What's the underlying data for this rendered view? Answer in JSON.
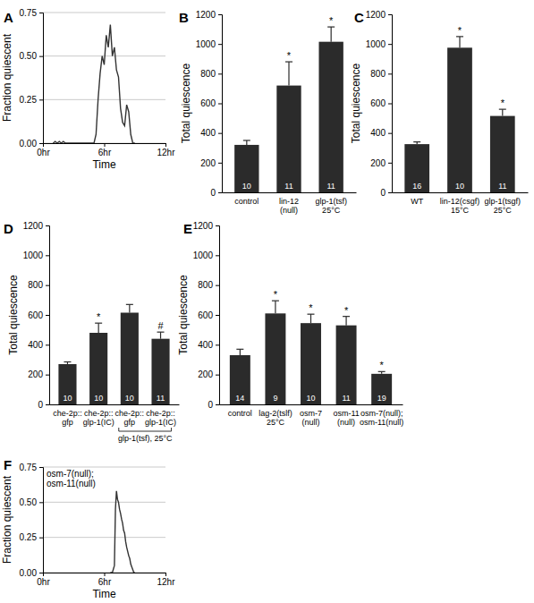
{
  "chart_data": [
    {
      "type": "line",
      "title": "A",
      "y_label": "Fraction quiescent",
      "x_label": "Time",
      "color": "#333333",
      "grid": true,
      "x": [
        1.0,
        1.2,
        1.4,
        1.6,
        1.8,
        2.0,
        2.2,
        2.4,
        2.6,
        2.8,
        3.0,
        3.2,
        3.4,
        3.6,
        3.8,
        4.0,
        4.2,
        4.4,
        4.6,
        4.8,
        5.0,
        5.2,
        5.4,
        5.6,
        5.8,
        6.0,
        6.2,
        6.4,
        6.6,
        6.8,
        7.0,
        7.2,
        7.4,
        7.6,
        7.8,
        8.0,
        8.2,
        8.4,
        8.6,
        8.8,
        9.0
      ],
      "values": [
        0,
        0.01,
        0,
        0.01,
        0,
        0.01,
        0,
        0,
        0,
        0,
        0,
        0,
        0,
        0,
        0,
        0,
        0,
        0,
        0,
        0,
        0,
        0.05,
        0.25,
        0.4,
        0.5,
        0.45,
        0.62,
        0.55,
        0.68,
        0.5,
        0.55,
        0.42,
        0.38,
        0.2,
        0.12,
        0.1,
        0.22,
        0.18,
        0.05,
        0,
        0
      ],
      "xlim": [
        0,
        12
      ],
      "xticks": [
        {
          "value": 0,
          "label": "0hr"
        },
        {
          "value": 6,
          "label": "6hr"
        },
        {
          "value": 12,
          "label": "12hr"
        }
      ],
      "ylim": [
        0,
        0.75
      ],
      "yticks": [
        {
          "value": 0,
          "label": "0.00"
        },
        {
          "value": 0.25,
          "label": "0.25"
        },
        {
          "value": 0.5,
          "label": "0.50"
        },
        {
          "value": 0.75,
          "label": "0.75"
        }
      ]
    },
    {
      "type": "bar",
      "title": "B",
      "y_label": "Total quiescence",
      "color": "#2b2b2b",
      "grid": false,
      "categories": [
        "control",
        "lin-12\n(null)",
        "glp-1(tsf)\n25°C"
      ],
      "values": [
        320,
        720,
        1015
      ],
      "errors": [
        30,
        160,
        100
      ],
      "n": [
        10,
        11,
        11
      ],
      "significance": [
        null,
        "*",
        "*"
      ],
      "ylim": [
        0,
        1200
      ],
      "yticks": [
        0,
        200,
        400,
        600,
        800,
        1000,
        1200
      ]
    },
    {
      "type": "bar",
      "title": "C",
      "y_label": "Total quiescence",
      "color": "#2b2b2b",
      "grid": false,
      "categories": [
        "WT",
        "lin-12(csgf)\n15°C",
        "glp-1(tsgf)\n25°C"
      ],
      "values": [
        325,
        975,
        515
      ],
      "errors": [
        15,
        75,
        45
      ],
      "n": [
        16,
        10,
        11
      ],
      "significance": [
        null,
        "*",
        "*"
      ],
      "ylim": [
        0,
        1200
      ],
      "yticks": [
        0,
        200,
        400,
        600,
        800,
        1000,
        1200
      ]
    },
    {
      "type": "bar",
      "title": "D",
      "y_label": "Total quiescence",
      "color": "#2b2b2b",
      "grid": false,
      "categories": [
        "che-2p::\ngfp",
        "che-2p::\nglp-1(IC)",
        "che-2p::\ngfp",
        "che-2p::\nglp-1(IC)"
      ],
      "values": [
        270,
        480,
        615,
        440
      ],
      "errors": [
        15,
        65,
        55,
        45
      ],
      "n": [
        10,
        10,
        10,
        11
      ],
      "significance": [
        null,
        "*",
        null,
        "#"
      ],
      "bracket": {
        "label": "glp-1(tsf), 25°C",
        "from": 2,
        "to": 3
      },
      "ylim": [
        0,
        1200
      ],
      "yticks": [
        0,
        200,
        400,
        600,
        800,
        1000,
        1200
      ]
    },
    {
      "type": "bar",
      "title": "E",
      "y_label": "Total quiescence",
      "color": "#2b2b2b",
      "grid": false,
      "categories": [
        "control",
        "lag-2(tslf)\n25°C",
        "osm-7\n(null)",
        "osm-11\n(null)",
        "osm-7(null);\nosm-11(null)"
      ],
      "values": [
        330,
        610,
        545,
        530,
        205
      ],
      "errors": [
        40,
        85,
        60,
        60,
        15
      ],
      "n": [
        14,
        9,
        10,
        11,
        19
      ],
      "significance": [
        null,
        "*",
        "*",
        "*",
        "*"
      ],
      "ylim": [
        0,
        1200
      ],
      "yticks": [
        0,
        200,
        400,
        600,
        800,
        1000,
        1200
      ]
    },
    {
      "type": "line",
      "title": "F",
      "y_label": "Fraction quiescent",
      "x_label": "Time",
      "color": "#333333",
      "grid": true,
      "annotations": [
        "osm-7(null);\nosm-11(null)"
      ],
      "x": [
        6.6,
        6.8,
        7.0,
        7.1,
        7.2,
        7.3,
        7.4,
        7.5,
        7.6,
        7.7,
        7.8,
        7.9,
        8.0,
        8.1,
        8.2,
        8.3,
        8.4,
        8.5,
        8.6,
        8.7,
        8.8,
        8.9,
        9.0
      ],
      "values": [
        0,
        0,
        0.05,
        0.45,
        0.58,
        0.52,
        0.5,
        0.45,
        0.42,
        0.38,
        0.35,
        0.3,
        0.28,
        0.22,
        0.18,
        0.15,
        0.12,
        0.1,
        0.06,
        0.04,
        0.02,
        0,
        0
      ],
      "xlim": [
        0,
        12
      ],
      "xticks": [
        {
          "value": 0,
          "label": "0hr"
        },
        {
          "value": 6,
          "label": "6hr"
        },
        {
          "value": 12,
          "label": "12hr"
        }
      ],
      "ylim": [
        0,
        0.75
      ],
      "yticks": [
        {
          "value": 0,
          "label": "0.00"
        },
        {
          "value": 0.25,
          "label": "0.25"
        },
        {
          "value": 0.5,
          "label": "0.50"
        },
        {
          "value": 0.75,
          "label": "0.75"
        }
      ]
    }
  ]
}
